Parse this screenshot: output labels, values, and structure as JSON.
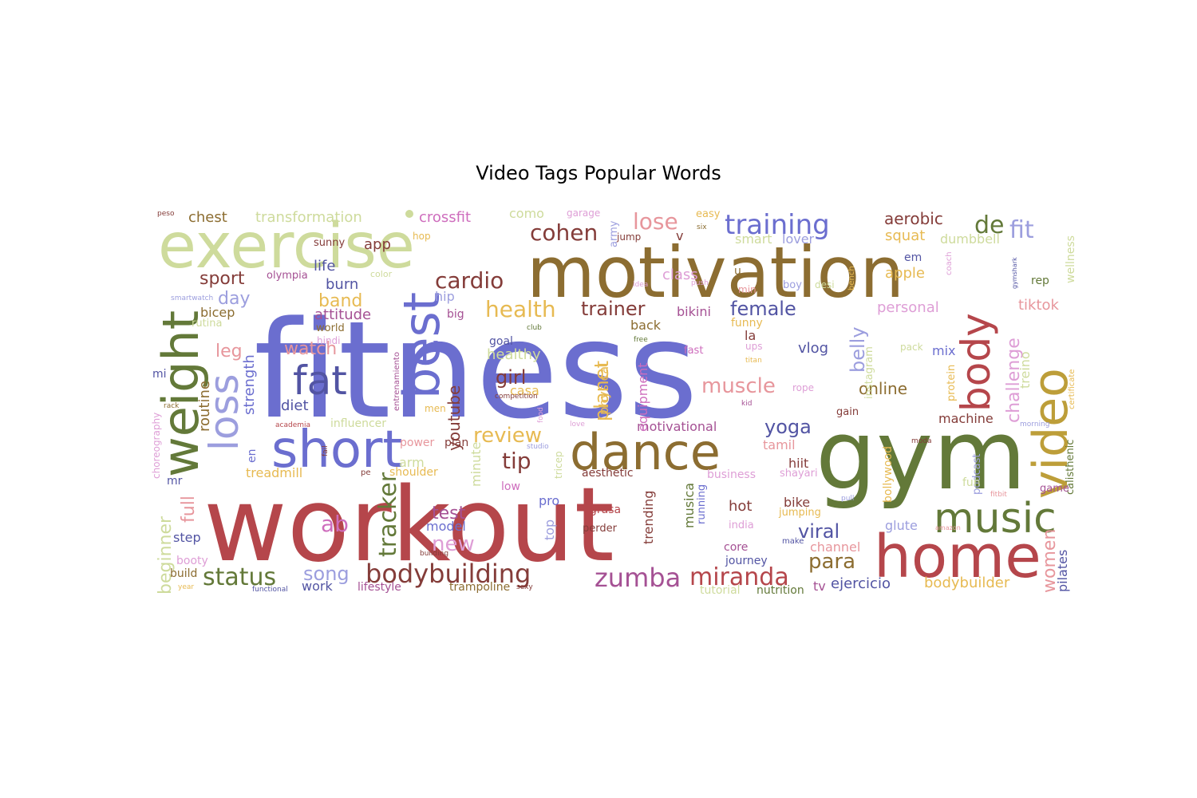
{
  "chart_data": {
    "type": "wordcloud",
    "title": "Video Tags Popular Words",
    "palette": [
      "#6b6ecf",
      "#b5464b",
      "#637939",
      "#8c6d31",
      "#cedb9c",
      "#e7ba52",
      "#d6616b",
      "#9c9ede",
      "#a55194",
      "#e7969c",
      "#843c39",
      "#bd9e39",
      "#5254a3",
      "#de9ed6",
      "#ce6dbd"
    ],
    "words": [
      {
        "text": "fitness",
        "weight": 100,
        "color": "#6b6ecf"
      },
      {
        "text": "workout",
        "weight": 80,
        "color": "#b5464b"
      },
      {
        "text": "gym",
        "weight": 62,
        "color": "#637939"
      },
      {
        "text": "motivation",
        "weight": 45,
        "color": "#8c6d31"
      },
      {
        "text": "exercise",
        "weight": 40,
        "color": "#cedb9c"
      },
      {
        "text": "home",
        "weight": 38,
        "color": "#b5464b"
      },
      {
        "text": "video",
        "weight": 34,
        "color": "#bd9e39"
      },
      {
        "text": "dance",
        "weight": 33,
        "color": "#8c6d31"
      },
      {
        "text": "weight",
        "weight": 33,
        "color": "#637939"
      },
      {
        "text": "short",
        "weight": 32,
        "color": "#6b6ecf"
      },
      {
        "text": "best",
        "weight": 30,
        "color": "#6b6ecf"
      },
      {
        "text": "music",
        "weight": 27,
        "color": "#637939"
      },
      {
        "text": "fat",
        "weight": 26,
        "color": "#5254a3"
      },
      {
        "text": "body",
        "weight": 26,
        "color": "#b5464b"
      },
      {
        "text": "loss",
        "weight": 24,
        "color": "#9c9ede"
      },
      {
        "text": "bodybuilding",
        "weight": 18,
        "color": "#843c39"
      },
      {
        "text": "training",
        "weight": 18,
        "color": "#6b6ecf"
      },
      {
        "text": "zumba",
        "weight": 17,
        "color": "#a55194"
      },
      {
        "text": "miranda",
        "weight": 17,
        "color": "#b5464b"
      },
      {
        "text": "status",
        "weight": 17,
        "color": "#637939"
      },
      {
        "text": "cardio",
        "weight": 16,
        "color": "#843c39"
      },
      {
        "text": "health",
        "weight": 16,
        "color": "#e7ba52"
      },
      {
        "text": "cohen",
        "weight": 15,
        "color": "#843c39"
      },
      {
        "text": "lose",
        "weight": 15,
        "color": "#e7969c"
      },
      {
        "text": "fit",
        "weight": 15,
        "color": "#9c9ede"
      },
      {
        "text": "de",
        "weight": 15,
        "color": "#637939"
      },
      {
        "text": "tracker",
        "weight": 14,
        "color": "#637939"
      },
      {
        "text": "tip",
        "weight": 14,
        "color": "#843c39"
      },
      {
        "text": "review",
        "weight": 14,
        "color": "#e7ba52"
      },
      {
        "text": "ab",
        "weight": 14,
        "color": "#ce6dbd"
      },
      {
        "text": "muscle",
        "weight": 13,
        "color": "#e7969c"
      },
      {
        "text": "new",
        "weight": 13,
        "color": "#de9ed6"
      },
      {
        "text": "para",
        "weight": 13,
        "color": "#8c6d31"
      },
      {
        "text": "song",
        "weight": 13,
        "color": "#9c9ede"
      },
      {
        "text": "viral",
        "weight": 13,
        "color": "#5254a3"
      },
      {
        "text": "women",
        "weight": 12,
        "color": "#e7969c"
      },
      {
        "text": "yoga",
        "weight": 12,
        "color": "#5254a3"
      },
      {
        "text": "girl",
        "weight": 12,
        "color": "#843c39"
      },
      {
        "text": "female",
        "weight": 12,
        "color": "#5254a3"
      },
      {
        "text": "trainer",
        "weight": 12,
        "color": "#843c39"
      },
      {
        "text": "challenge",
        "weight": 12,
        "color": "#de9ed6"
      },
      {
        "text": "belly",
        "weight": 12,
        "color": "#9c9ede"
      },
      {
        "text": "planet",
        "weight": 12,
        "color": "#e7ba52"
      },
      {
        "text": "full",
        "weight": 12,
        "color": "#e7969c"
      },
      {
        "text": "beginner",
        "weight": 12,
        "color": "#cedb9c"
      },
      {
        "text": "test",
        "weight": 11,
        "color": "#a55194"
      },
      {
        "text": "sport",
        "weight": 11,
        "color": "#843c39"
      },
      {
        "text": "day",
        "weight": 11,
        "color": "#9c9ede"
      },
      {
        "text": "band",
        "weight": 11,
        "color": "#e7ba52"
      },
      {
        "text": "watch",
        "weight": 11,
        "color": "#e7969c"
      },
      {
        "text": "leg",
        "weight": 11,
        "color": "#e7969c"
      },
      {
        "text": "youtube",
        "weight": 11,
        "color": "#843c39"
      },
      {
        "text": "online",
        "weight": 10,
        "color": "#8c6d31"
      },
      {
        "text": "aerobic",
        "weight": 10,
        "color": "#843c39"
      },
      {
        "text": "routine",
        "weight": 10,
        "color": "#8c6d31"
      },
      {
        "text": "strength",
        "weight": 10,
        "color": "#6b6ecf"
      },
      {
        "text": "crossfit",
        "weight": 9,
        "color": "#ce6dbd"
      },
      {
        "text": "transformation",
        "weight": 9,
        "color": "#cedb9c"
      },
      {
        "text": "chest",
        "weight": 9,
        "color": "#8c6d31"
      },
      {
        "text": "app",
        "weight": 9,
        "color": "#843c39"
      },
      {
        "text": "life",
        "weight": 9,
        "color": "#5254a3"
      },
      {
        "text": "burn",
        "weight": 9,
        "color": "#5254a3"
      },
      {
        "text": "diet",
        "weight": 9,
        "color": "#5254a3"
      },
      {
        "text": "class",
        "weight": 9,
        "color": "#de9ed6"
      },
      {
        "text": "squat",
        "weight": 9,
        "color": "#e7ba52"
      },
      {
        "text": "apple",
        "weight": 9,
        "color": "#e7ba52"
      },
      {
        "text": "personal",
        "weight": 9,
        "color": "#de9ed6"
      },
      {
        "text": "tiktok",
        "weight": 9,
        "color": "#e7969c"
      },
      {
        "text": "vlog",
        "weight": 9,
        "color": "#5254a3"
      },
      {
        "text": "healthy",
        "weight": 9,
        "color": "#cedb9c"
      },
      {
        "text": "attitude",
        "weight": 9,
        "color": "#a55194"
      },
      {
        "text": "bikini",
        "weight": 9,
        "color": "#a55194"
      },
      {
        "text": "back",
        "weight": 9,
        "color": "#8c6d31"
      },
      {
        "text": "hot",
        "weight": 9,
        "color": "#843c39"
      },
      {
        "text": "bike",
        "weight": 9,
        "color": "#843c39"
      },
      {
        "text": "ejercicio",
        "weight": 9,
        "color": "#5254a3"
      },
      {
        "text": "bodybuilder",
        "weight": 9,
        "color": "#e7ba52"
      },
      {
        "text": "machine",
        "weight": 9,
        "color": "#843c39"
      },
      {
        "text": "model",
        "weight": 9,
        "color": "#6b6ecf"
      },
      {
        "text": "treadmill",
        "weight": 8,
        "color": "#e7ba52"
      },
      {
        "text": "motivational",
        "weight": 8,
        "color": "#a55194"
      },
      {
        "text": "mix",
        "weight": 8,
        "color": "#6b6ecf"
      },
      {
        "text": "work",
        "weight": 8,
        "color": "#5254a3"
      },
      {
        "text": "casa",
        "weight": 8,
        "color": "#e7ba52"
      },
      {
        "text": "physical",
        "weight": 8,
        "color": "#e7ba52"
      },
      {
        "text": "equipment",
        "weight": 8,
        "color": "#ce6dbd"
      },
      {
        "text": "trending",
        "weight": 8,
        "color": "#843c39"
      },
      {
        "text": "musica",
        "weight": 8,
        "color": "#637939"
      },
      {
        "text": "glute",
        "weight": 8,
        "color": "#9c9ede"
      },
      {
        "text": "pilates",
        "weight": 8,
        "color": "#5254a3"
      },
      {
        "text": "tamil",
        "weight": 8,
        "color": "#e7969c"
      },
      {
        "text": "hiit",
        "weight": 8,
        "color": "#843c39"
      },
      {
        "text": "channel",
        "weight": 8,
        "color": "#e7969c"
      },
      {
        "text": "tv",
        "weight": 8,
        "color": "#a55194"
      },
      {
        "text": "step",
        "weight": 8,
        "color": "#5254a3"
      },
      {
        "text": "pro",
        "weight": 8,
        "color": "#6b6ecf"
      },
      {
        "text": "arm",
        "weight": 8,
        "color": "#cedb9c"
      },
      {
        "text": "minute",
        "weight": 8,
        "color": "#cedb9c"
      },
      {
        "text": "treino",
        "weight": 8,
        "color": "#cedb9c"
      },
      {
        "text": "funny",
        "weight": 7,
        "color": "#e7ba52"
      },
      {
        "text": "la",
        "weight": 7,
        "color": "#843c39"
      },
      {
        "text": "wellness",
        "weight": 7,
        "color": "#cedb9c"
      },
      {
        "text": "dumbbell",
        "weight": 7,
        "color": "#cedb9c"
      },
      {
        "text": "lover",
        "weight": 7,
        "color": "#9c9ede"
      },
      {
        "text": "smart",
        "weight": 7,
        "color": "#cedb9c"
      },
      {
        "text": "como",
        "weight": 7,
        "color": "#cedb9c"
      },
      {
        "text": "hip",
        "weight": 7,
        "color": "#9c9ede"
      },
      {
        "text": "goal",
        "weight": 7,
        "color": "#5254a3"
      },
      {
        "text": "bicep",
        "weight": 7,
        "color": "#8c6d31"
      },
      {
        "text": "core",
        "weight": 7,
        "color": "#a55194"
      },
      {
        "text": "nutrition",
        "weight": 6,
        "color": "#637939"
      },
      {
        "text": "trampoline",
        "weight": 6,
        "color": "#8c6d31"
      },
      {
        "text": "lifestyle",
        "weight": 6,
        "color": "#a55194"
      },
      {
        "text": "build",
        "weight": 6,
        "color": "#8c6d31"
      },
      {
        "text": "booty",
        "weight": 6,
        "color": "#de9ed6"
      },
      {
        "text": "en",
        "weight": 6,
        "color": "#6b6ecf"
      },
      {
        "text": "top",
        "weight": 6,
        "color": "#9c9ede"
      },
      {
        "text": "aesthetic",
        "weight": 6,
        "color": "#843c39"
      },
      {
        "text": "shoulder",
        "weight": 6,
        "color": "#e7ba52"
      },
      {
        "text": "jumping",
        "weight": 6,
        "color": "#e7ba52"
      },
      {
        "text": "shayari",
        "weight": 6,
        "color": "#de9ed6"
      },
      {
        "text": "business",
        "weight": 6,
        "color": "#de9ed6"
      },
      {
        "text": "india",
        "weight": 6,
        "color": "#de9ed6"
      },
      {
        "text": "journey",
        "weight": 6,
        "color": "#5254a3"
      },
      {
        "text": "tutorial",
        "weight": 6,
        "color": "#cedb9c"
      },
      {
        "text": "calisthenic",
        "weight": 6,
        "color": "#637939"
      },
      {
        "text": "bollywood",
        "weight": 6,
        "color": "#e7ba52"
      },
      {
        "text": "podcast",
        "weight": 6,
        "color": "#9c9ede"
      },
      {
        "text": "fun",
        "weight": 6,
        "color": "#cedb9c"
      },
      {
        "text": "game",
        "weight": 6,
        "color": "#a55194"
      },
      {
        "text": "rep",
        "weight": 6,
        "color": "#637939"
      },
      {
        "text": "instagram",
        "weight": 6,
        "color": "#cedb9c"
      },
      {
        "text": "protein",
        "weight": 6,
        "color": "#e7ba52"
      },
      {
        "text": "running",
        "weight": 6,
        "color": "#6b6ecf"
      },
      {
        "text": "grasa",
        "weight": 6,
        "color": "#b5464b"
      },
      {
        "text": "perder",
        "weight": 6,
        "color": "#843c39"
      },
      {
        "text": "low",
        "weight": 6,
        "color": "#ce6dbd"
      },
      {
        "text": "plan",
        "weight": 6,
        "color": "#843c39"
      },
      {
        "text": "power",
        "weight": 6,
        "color": "#e7969c"
      },
      {
        "text": "mr",
        "weight": 6,
        "color": "#5254a3"
      },
      {
        "text": "mi",
        "weight": 6,
        "color": "#5254a3"
      },
      {
        "text": "v",
        "weight": 6,
        "color": "#843c39"
      },
      {
        "text": "u",
        "weight": 6,
        "color": "#8c6d31"
      },
      {
        "text": "em",
        "weight": 6,
        "color": "#5254a3"
      },
      {
        "text": "big",
        "weight": 6,
        "color": "#a55194"
      },
      {
        "text": "sunny",
        "weight": 5,
        "color": "#843c39"
      },
      {
        "text": "olympia",
        "weight": 5,
        "color": "#a55194"
      },
      {
        "text": "world",
        "weight": 5,
        "color": "#8c6d31"
      },
      {
        "text": "rutina",
        "weight": 5,
        "color": "#cedb9c"
      },
      {
        "text": "hindi",
        "weight": 5,
        "color": "#de9ed6"
      },
      {
        "text": "influencer",
        "weight": 5,
        "color": "#cedb9c"
      },
      {
        "text": "choreography",
        "weight": 5,
        "color": "#de9ed6"
      },
      {
        "text": "hop",
        "weight": 5,
        "color": "#e7ba52"
      },
      {
        "text": "color",
        "weight": 5,
        "color": "#cedb9c"
      },
      {
        "text": "garage",
        "weight": 5,
        "color": "#de9ed6"
      },
      {
        "text": "army",
        "weight": 5,
        "color": "#9c9ede"
      },
      {
        "text": "jump",
        "weight": 5,
        "color": "#843c39"
      },
      {
        "text": "easy",
        "weight": 5,
        "color": "#e7ba52"
      },
      {
        "text": "min",
        "weight": 5,
        "color": "#e7969c"
      },
      {
        "text": "boy",
        "weight": 5,
        "color": "#9c9ede"
      },
      {
        "text": "desi",
        "weight": 5,
        "color": "#cedb9c"
      },
      {
        "text": "fast",
        "weight": 5,
        "color": "#ce6dbd"
      },
      {
        "text": "ups",
        "weight": 5,
        "color": "#de9ed6"
      },
      {
        "text": "pack",
        "weight": 5,
        "color": "#cedb9c"
      },
      {
        "text": "rope",
        "weight": 5,
        "color": "#de9ed6"
      },
      {
        "text": "gain",
        "weight": 5,
        "color": "#843c39"
      },
      {
        "text": "tricep",
        "weight": 5,
        "color": "#cedb9c"
      },
      {
        "text": "fitbit",
        "weight": 4,
        "color": "#e7969c"
      },
      {
        "text": "pull",
        "weight": 4,
        "color": "#9c9ede"
      },
      {
        "text": "make",
        "weight": 4,
        "color": "#5254a3"
      },
      {
        "text": "amazon",
        "weight": 3,
        "color": "#e7969c"
      },
      {
        "text": "moda",
        "weight": 3,
        "color": "#843c39"
      },
      {
        "text": "morning",
        "weight": 3,
        "color": "#9c9ede"
      },
      {
        "text": "certificate",
        "weight": 3,
        "color": "#e7ba52"
      },
      {
        "text": "coach",
        "weight": 3,
        "color": "#de9ed6"
      },
      {
        "text": "gymshark",
        "weight": 3,
        "color": "#5254a3"
      },
      {
        "text": "bench",
        "weight": 3,
        "color": "#e7ba52"
      },
      {
        "text": "titan",
        "weight": 3,
        "color": "#e7ba52"
      },
      {
        "text": "kid",
        "weight": 3,
        "color": "#a55194"
      },
      {
        "text": "free",
        "weight": 3,
        "color": "#637939"
      },
      {
        "text": "idea",
        "weight": 3,
        "color": "#de9ed6"
      },
      {
        "text": "push",
        "weight": 3,
        "color": "#de9ed6"
      },
      {
        "text": "six",
        "weight": 3,
        "color": "#8c6d31"
      },
      {
        "text": "club",
        "weight": 3,
        "color": "#637939"
      },
      {
        "text": "competition",
        "weight": 3,
        "color": "#843c39"
      },
      {
        "text": "food",
        "weight": 3,
        "color": "#de9ed6"
      },
      {
        "text": "love",
        "weight": 3,
        "color": "#de9ed6"
      },
      {
        "text": "studio",
        "weight": 3,
        "color": "#9c9ede"
      },
      {
        "text": "fail",
        "weight": 3,
        "color": "#843c39"
      },
      {
        "text": "rack",
        "weight": 3,
        "color": "#8c6d31"
      },
      {
        "text": "academia",
        "weight": 3,
        "color": "#b5464b"
      },
      {
        "text": "pe",
        "weight": 3,
        "color": "#843c39"
      },
      {
        "text": "men",
        "weight": 3,
        "color": "#e7ba52"
      },
      {
        "text": "building",
        "weight": 3,
        "color": "#843c39"
      },
      {
        "text": "sexy",
        "weight": 3,
        "color": "#843c39"
      },
      {
        "text": "functional",
        "weight": 3,
        "color": "#5254a3"
      },
      {
        "text": "year",
        "weight": 3,
        "color": "#e7ba52"
      },
      {
        "text": "smartwatch",
        "weight": 3,
        "color": "#9c9ede"
      },
      {
        "text": "peso",
        "weight": 3,
        "color": "#843c39"
      },
      {
        "text": "entrenamiento",
        "weight": 3,
        "color": "#a55194"
      }
    ]
  }
}
